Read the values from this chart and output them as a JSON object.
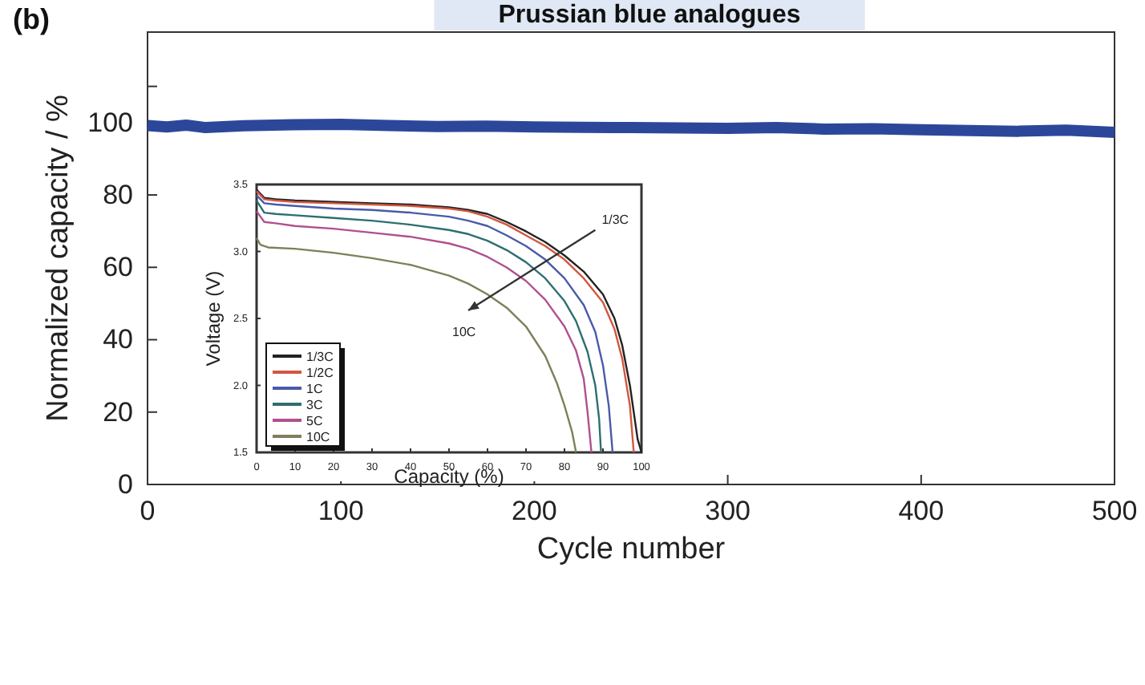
{
  "chart_data": [
    {
      "type": "line",
      "title": "Prussian blue analogues",
      "xlabel": "Cycle number",
      "ylabel": "Normalized capacity / %",
      "annotations": [
        "(b)"
      ],
      "xlim": [
        0,
        500
      ],
      "xticks": [
        0,
        100,
        200,
        300,
        400,
        500
      ],
      "ylim": [
        0,
        125
      ],
      "yticks": [
        0,
        20,
        40,
        60,
        80,
        100,
        {
          "value": 110,
          "label": null
        }
      ],
      "grid": false,
      "marker": "none",
      "line_style": "solid",
      "series": [
        {
          "color": "#2c479a",
          "x": [
            0,
            10,
            20,
            30,
            50,
            75,
            100,
            125,
            150,
            175,
            200,
            225,
            250,
            275,
            300,
            325,
            350,
            375,
            400,
            425,
            450,
            475,
            500
          ],
          "values": [
            99.2,
            98.8,
            99.3,
            98.6,
            99.1,
            99.4,
            99.5,
            99.2,
            98.9,
            99.0,
            98.8,
            98.7,
            98.6,
            98.5,
            98.4,
            98.6,
            98.2,
            98.3,
            98.0,
            97.8,
            97.6,
            97.9,
            97.3
          ]
        }
      ]
    },
    {
      "type": "line",
      "xlabel": "Capacity (%)",
      "ylabel": "Voltage (V)",
      "annotations": [
        "1/3C",
        "10C"
      ],
      "xlim": [
        0,
        100
      ],
      "xticks": [
        0,
        10,
        20,
        30,
        40,
        50,
        60,
        70,
        80,
        90,
        100
      ],
      "ylim": [
        1.5,
        3.5
      ],
      "yticks": [
        1.5,
        {
          "value": 2,
          "label": "2.0"
        },
        2.5,
        {
          "value": 3,
          "label": "3.0"
        },
        3.5
      ],
      "grid": false,
      "legend": "bottom left",
      "marker": "none",
      "line_style": "solid",
      "series": [
        {
          "name": "1/3C",
          "color": "#222222",
          "x": [
            0,
            2,
            5,
            10,
            20,
            30,
            40,
            50,
            55,
            60,
            65,
            70,
            75,
            80,
            85,
            90,
            93,
            95,
            97,
            98,
            99,
            100
          ],
          "values": [
            3.46,
            3.4,
            3.39,
            3.38,
            3.37,
            3.36,
            3.35,
            3.33,
            3.31,
            3.28,
            3.22,
            3.15,
            3.07,
            2.97,
            2.85,
            2.68,
            2.5,
            2.3,
            2.0,
            1.8,
            1.6,
            1.5
          ]
        },
        {
          "name": "1/2C",
          "color": "#d4563f",
          "x": [
            0,
            2,
            5,
            10,
            20,
            30,
            40,
            50,
            55,
            60,
            65,
            70,
            75,
            80,
            85,
            90,
            93,
            95,
            97,
            98
          ],
          "values": [
            3.45,
            3.39,
            3.38,
            3.37,
            3.36,
            3.35,
            3.34,
            3.32,
            3.3,
            3.26,
            3.2,
            3.12,
            3.04,
            2.94,
            2.8,
            2.62,
            2.42,
            2.2,
            1.85,
            1.5
          ]
        },
        {
          "name": "1C",
          "color": "#4a5aa8",
          "x": [
            0,
            2,
            5,
            10,
            20,
            30,
            40,
            50,
            55,
            60,
            65,
            70,
            75,
            80,
            85,
            88,
            90,
            91.5,
            92.5
          ],
          "values": [
            3.42,
            3.36,
            3.35,
            3.34,
            3.32,
            3.31,
            3.29,
            3.26,
            3.23,
            3.19,
            3.12,
            3.04,
            2.94,
            2.8,
            2.6,
            2.4,
            2.15,
            1.85,
            1.5
          ]
        },
        {
          "name": "3C",
          "color": "#2e6f70",
          "x": [
            0,
            2,
            5,
            10,
            20,
            30,
            40,
            50,
            55,
            60,
            65,
            70,
            75,
            80,
            83,
            86,
            88,
            89,
            89.5
          ],
          "values": [
            3.38,
            3.29,
            3.28,
            3.27,
            3.25,
            3.23,
            3.2,
            3.16,
            3.13,
            3.08,
            3.01,
            2.92,
            2.8,
            2.63,
            2.48,
            2.25,
            2.0,
            1.75,
            1.5
          ]
        },
        {
          "name": "5C",
          "color": "#b0508f",
          "x": [
            0,
            2,
            5,
            10,
            20,
            30,
            40,
            50,
            55,
            60,
            65,
            70,
            75,
            80,
            83,
            85,
            86,
            87
          ],
          "values": [
            3.3,
            3.22,
            3.21,
            3.19,
            3.17,
            3.14,
            3.11,
            3.06,
            3.02,
            2.96,
            2.88,
            2.78,
            2.64,
            2.44,
            2.26,
            2.05,
            1.8,
            1.5
          ]
        },
        {
          "name": "10C",
          "color": "#7f7f5a",
          "x": [
            0,
            1,
            3,
            10,
            20,
            30,
            40,
            50,
            55,
            60,
            65,
            70,
            75,
            78,
            80,
            82,
            83
          ],
          "values": [
            3.1,
            3.05,
            3.03,
            3.02,
            2.99,
            2.95,
            2.9,
            2.82,
            2.76,
            2.68,
            2.58,
            2.44,
            2.22,
            2.02,
            1.85,
            1.65,
            1.5
          ]
        }
      ]
    }
  ]
}
